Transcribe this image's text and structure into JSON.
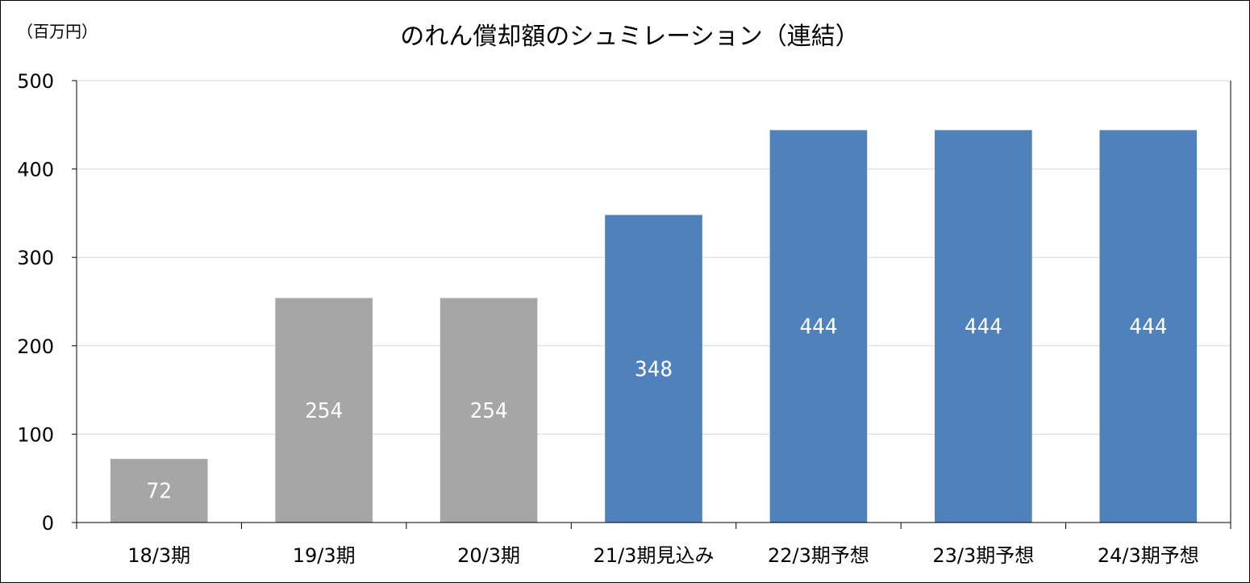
{
  "chart_data": {
    "type": "bar",
    "title": "のれん償却額のシュミレーション（連結）",
    "unit_label": "（百万円）",
    "categories": [
      "18/3期",
      "19/3期",
      "20/3期",
      "21/3期見込み",
      "22/3期予想",
      "23/3期予想",
      "24/3期予想"
    ],
    "values": [
      72,
      254,
      254,
      348,
      444,
      444,
      444
    ],
    "data_labels": [
      "72",
      "254",
      "254",
      "348",
      "444",
      "444",
      "444"
    ],
    "bar_colors": [
      "#a6a6a6",
      "#a6a6a6",
      "#a6a6a6",
      "#4f81bd",
      "#4f81bd",
      "#4f81bd",
      "#4f81bd"
    ],
    "ylim": [
      0,
      500
    ],
    "yticks": [
      0,
      100,
      200,
      300,
      400,
      500
    ],
    "ytick_labels": [
      "0",
      "100",
      "200",
      "300",
      "400",
      "500"
    ],
    "grid": true,
    "legend": "none"
  }
}
